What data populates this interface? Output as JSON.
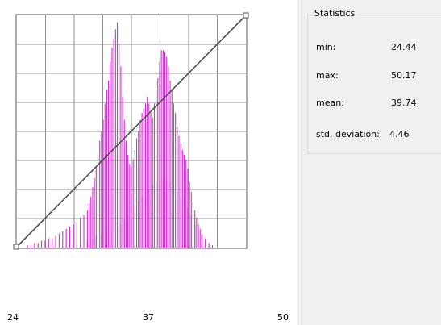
{
  "window": {
    "background": "#ffffff",
    "panel_background": "#f0f0f0"
  },
  "histogram": {
    "x_axis_ticks": [
      "24",
      "37",
      "50"
    ],
    "bar_color": "#cc33cc",
    "curve_color": "#505050",
    "handle_icons": [
      "square-handle-icon",
      "square-handle-icon"
    ],
    "chart_data": {
      "type": "bar",
      "xlim": [
        24,
        50
      ],
      "ylim": [
        0,
        100
      ],
      "grid": true,
      "bars": [
        [
          25.2,
          1
        ],
        [
          25.6,
          1
        ],
        [
          26.0,
          2
        ],
        [
          26.4,
          2
        ],
        [
          26.8,
          3
        ],
        [
          27.2,
          3
        ],
        [
          27.6,
          4
        ],
        [
          28.0,
          4
        ],
        [
          28.4,
          5
        ],
        [
          28.8,
          6
        ],
        [
          29.2,
          7
        ],
        [
          29.6,
          8
        ],
        [
          30.0,
          9
        ],
        [
          30.4,
          10
        ],
        [
          30.8,
          11
        ],
        [
          31.2,
          13
        ],
        [
          31.6,
          14
        ],
        [
          32.0,
          16
        ],
        [
          32.2,
          19
        ],
        [
          32.4,
          22
        ],
        [
          32.6,
          26
        ],
        [
          32.8,
          30
        ],
        [
          33.0,
          35
        ],
        [
          33.2,
          40
        ],
        [
          33.4,
          46
        ],
        [
          33.6,
          50
        ],
        [
          33.8,
          55
        ],
        [
          34.0,
          62
        ],
        [
          34.2,
          68
        ],
        [
          34.4,
          72
        ],
        [
          34.6,
          80
        ],
        [
          34.8,
          86
        ],
        [
          35.0,
          90
        ],
        [
          35.2,
          94
        ],
        [
          35.4,
          97
        ],
        [
          35.6,
          88
        ],
        [
          35.8,
          78
        ],
        [
          36.0,
          65
        ],
        [
          36.2,
          55
        ],
        [
          36.4,
          46
        ],
        [
          36.6,
          40
        ],
        [
          36.8,
          36
        ],
        [
          37.0,
          35
        ],
        [
          37.2,
          38
        ],
        [
          37.4,
          42
        ],
        [
          37.6,
          47
        ],
        [
          37.8,
          50
        ],
        [
          38.0,
          55
        ],
        [
          38.2,
          58
        ],
        [
          38.4,
          60
        ],
        [
          38.6,
          62
        ],
        [
          38.8,
          65
        ],
        [
          39.0,
          62
        ],
        [
          39.2,
          58
        ],
        [
          39.4,
          56
        ],
        [
          39.6,
          62
        ],
        [
          39.8,
          68
        ],
        [
          40.0,
          73
        ],
        [
          40.2,
          80
        ],
        [
          40.4,
          85
        ],
        [
          40.6,
          85
        ],
        [
          40.8,
          84
        ],
        [
          41.0,
          82
        ],
        [
          41.2,
          78
        ],
        [
          41.4,
          72
        ],
        [
          41.6,
          68
        ],
        [
          41.8,
          62
        ],
        [
          42.0,
          58
        ],
        [
          42.2,
          52
        ],
        [
          42.4,
          48
        ],
        [
          42.6,
          45
        ],
        [
          42.8,
          42
        ],
        [
          43.0,
          40
        ],
        [
          43.2,
          38
        ],
        [
          43.4,
          34
        ],
        [
          43.6,
          28
        ],
        [
          43.8,
          24
        ],
        [
          44.0,
          20
        ],
        [
          44.2,
          16
        ],
        [
          44.4,
          13
        ],
        [
          44.6,
          10
        ],
        [
          44.8,
          8
        ],
        [
          45.0,
          6
        ],
        [
          45.4,
          4
        ],
        [
          45.8,
          2
        ],
        [
          46.2,
          1
        ]
      ],
      "overlay_bars": [
        [
          32.0,
          3
        ],
        [
          32.6,
          4
        ],
        [
          33.0,
          5
        ],
        [
          33.6,
          6
        ],
        [
          34.2,
          7
        ],
        [
          34.8,
          8
        ],
        [
          35.4,
          9
        ],
        [
          35.8,
          10
        ],
        [
          36.2,
          12
        ],
        [
          36.6,
          14
        ],
        [
          37.0,
          16
        ],
        [
          37.4,
          18
        ],
        [
          37.8,
          20
        ],
        [
          38.2,
          22
        ],
        [
          38.6,
          24
        ],
        [
          39.0,
          25
        ],
        [
          39.4,
          27
        ],
        [
          39.8,
          28
        ],
        [
          40.2,
          30
        ],
        [
          40.6,
          30
        ],
        [
          41.0,
          29
        ],
        [
          41.4,
          28
        ],
        [
          41.8,
          26
        ],
        [
          42.2,
          24
        ],
        [
          42.6,
          22
        ],
        [
          43.0,
          20
        ],
        [
          43.4,
          17
        ],
        [
          43.8,
          14
        ],
        [
          44.2,
          10
        ],
        [
          44.6,
          7
        ],
        [
          45.0,
          5
        ],
        [
          45.4,
          3
        ]
      ]
    }
  },
  "statistics": {
    "title": "Statistics",
    "rows": [
      {
        "label": "min:",
        "value": "24.44"
      },
      {
        "label": "max:",
        "value": "50.17"
      },
      {
        "label": "mean:",
        "value": "39.74"
      },
      {
        "label": "std. deviation:",
        "value": "4.46"
      }
    ]
  }
}
